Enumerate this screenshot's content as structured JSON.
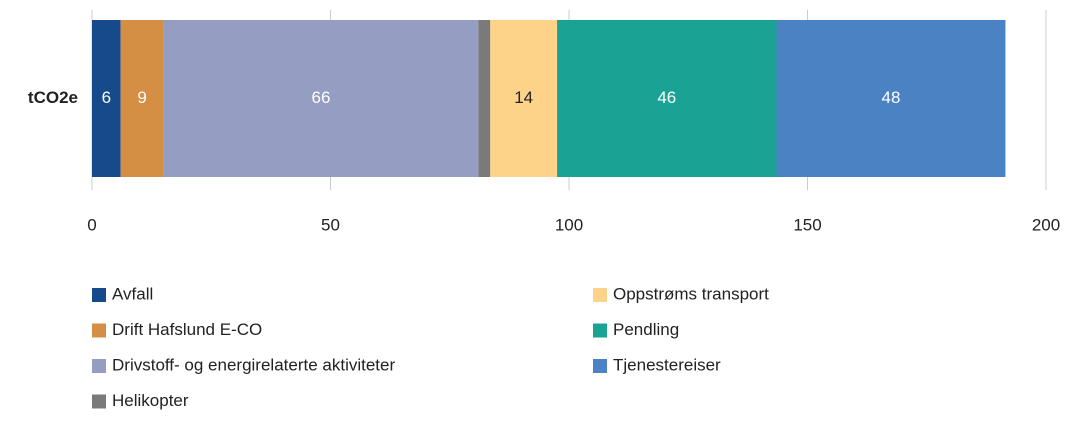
{
  "chart_data": {
    "type": "stacked-bar-horizontal",
    "categories": [
      "tCO2e"
    ],
    "series": [
      {
        "name": "Avfall",
        "color": "#174a8b",
        "values": [
          6
        ]
      },
      {
        "name": "Drift Hafslund E-CO",
        "color": "#d58f45",
        "values": [
          9
        ]
      },
      {
        "name": "Drivstoff- og energirelaterte aktiviteter",
        "color": "#959dc3",
        "values": [
          66
        ]
      },
      {
        "name": "Helikopter",
        "color": "#7a7a7a",
        "values": [
          2.5
        ]
      },
      {
        "name": "Oppstrøms transport",
        "color": "#fdd38a",
        "values": [
          14
        ]
      },
      {
        "name": "Pendling",
        "color": "#1aa394",
        "values": [
          46
        ]
      },
      {
        "name": "Tjenestereiser",
        "color": "#4a82c3",
        "values": [
          48
        ]
      }
    ],
    "xlim": [
      0,
      200
    ],
    "xticks": [
      0,
      50,
      100,
      150,
      200
    ],
    "grid": true,
    "legend": "bottom"
  }
}
